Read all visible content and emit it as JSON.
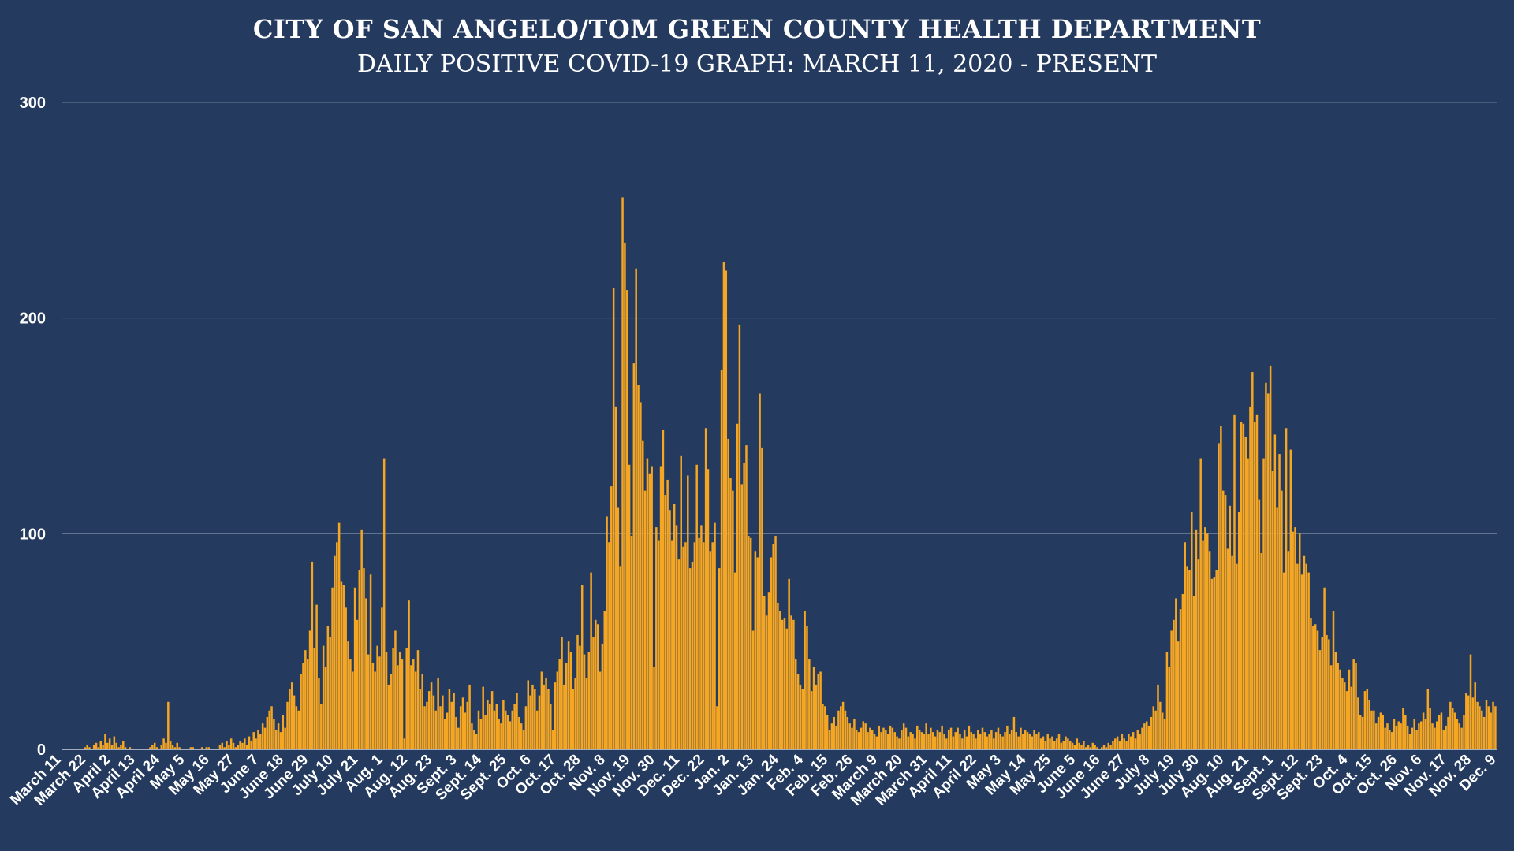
{
  "chart_data": {
    "type": "bar",
    "title": "CITY OF SAN ANGELO/TOM GREEN COUNTY HEALTH DEPARTMENT",
    "subtitle": "DAILY POSITIVE COVID-19 GRAPH: MARCH 11, 2020 - PRESENT",
    "xlabel": "",
    "ylabel": "",
    "ylim": [
      0,
      300
    ],
    "yticks": [
      0,
      100,
      200,
      300
    ],
    "grid": true,
    "legend": "none",
    "bar_color": "#f5a623",
    "categories": [
      "March 11",
      "March 22",
      "April 2",
      "April 13",
      "April 24",
      "May 5",
      "May 16",
      "May 27",
      "June 7",
      "June 18",
      "June 29",
      "July 10",
      "July 21",
      "Aug. 1",
      "Aug. 12",
      "Aug. 23",
      "Sept. 3",
      "Sept. 14",
      "Sept. 25",
      "Oct. 6",
      "Oct. 17",
      "Oct. 28",
      "Nov. 8",
      "Nov. 19",
      "Nov. 30",
      "Dec. 11",
      "Dec. 22",
      "Jan. 2",
      "Jan. 13",
      "Jan. 24",
      "Feb. 4",
      "Feb. 15",
      "Feb. 26",
      "March 9",
      "March 20",
      "March 31",
      "April 11",
      "April 22",
      "May 3",
      "May 14",
      "May 25",
      "June 5",
      "June 16",
      "June 27",
      "July 8",
      "July 19",
      "July 30",
      "Aug. 10",
      "Aug. 21",
      "Sept. 1",
      "Sept. 12",
      "Sept. 23",
      "Oct. 4",
      "Oct. 15",
      "Oct. 26",
      "Nov. 6",
      "Nov. 17",
      "Nov. 28",
      "Dec. 9"
    ],
    "series": [
      {
        "values": [
          [
            0,
            0,
            0,
            0,
            0,
            0,
            0,
            0,
            0,
            0,
            1
          ],
          [
            2,
            1,
            0,
            2,
            3,
            1,
            4,
            2,
            7,
            3,
            5
          ],
          [
            2,
            6,
            3,
            1,
            2,
            4,
            1,
            0,
            1,
            0,
            0
          ],
          [
            0,
            0,
            0,
            0,
            0,
            0,
            1,
            2,
            3,
            1,
            0
          ],
          [
            2,
            5,
            3,
            22,
            4,
            2,
            1,
            3,
            1,
            0,
            0
          ],
          [
            0,
            0,
            1,
            1,
            0,
            0,
            0,
            1,
            0,
            1,
            1
          ],
          [
            0,
            0,
            0,
            0,
            2,
            3,
            1,
            4,
            2,
            5,
            3
          ],
          [
            1,
            2,
            4,
            3,
            5,
            2,
            6,
            4,
            8,
            5,
            9
          ],
          [
            7,
            12,
            10,
            15,
            18,
            20,
            14,
            9,
            12,
            8,
            16
          ],
          [
            10,
            22,
            28,
            31,
            25,
            20,
            18,
            35,
            40,
            46,
            42
          ],
          [
            55,
            87,
            47,
            67,
            33,
            21,
            48,
            38,
            57,
            52,
            75
          ],
          [
            90,
            96,
            105,
            78,
            76,
            66,
            50,
            42,
            36,
            75,
            60
          ],
          [
            83,
            102,
            84,
            70,
            44,
            81,
            40,
            36,
            48,
            43,
            66
          ],
          [
            135,
            45,
            30,
            35,
            47,
            55,
            39,
            45,
            42,
            5,
            47
          ],
          [
            69,
            39,
            42,
            36,
            46,
            28,
            35,
            20,
            22,
            27,
            31
          ],
          [
            25,
            18,
            33,
            20,
            25,
            14,
            17,
            28,
            22,
            26,
            15
          ],
          [
            10,
            20,
            24,
            17,
            22,
            30,
            12,
            9,
            7,
            18,
            14
          ],
          [
            29,
            16,
            23,
            21,
            27,
            18,
            21,
            14,
            12,
            23,
            18
          ],
          [
            16,
            13,
            18,
            21,
            26,
            15,
            12,
            9,
            20,
            32,
            25
          ],
          [
            30,
            28,
            18,
            25,
            36,
            30,
            33,
            28,
            21,
            9,
            31
          ],
          [
            36,
            42,
            52,
            30,
            40,
            50,
            45,
            28,
            33,
            53,
            48
          ],
          [
            76,
            44,
            33,
            45,
            82,
            52,
            60,
            58,
            36,
            49,
            64
          ],
          [
            108,
            96,
            122,
            214,
            159,
            112,
            85,
            256,
            235,
            213,
            132
          ],
          [
            99,
            179,
            223,
            169,
            161,
            143,
            120,
            135,
            128,
            131,
            38
          ],
          [
            103,
            97,
            131,
            148,
            118,
            125,
            111,
            97,
            114,
            104,
            88
          ],
          [
            136,
            94,
            96,
            127,
            84,
            87,
            96,
            132,
            98,
            104,
            96
          ],
          [
            149,
            130,
            92,
            96,
            105,
            20,
            84,
            176,
            226,
            222,
            144
          ],
          [
            126,
            120,
            82,
            151,
            197,
            123,
            133,
            141,
            99,
            98,
            55
          ],
          [
            92,
            89,
            165,
            140,
            71,
            62,
            73,
            89,
            95,
            99,
            68
          ],
          [
            64,
            60,
            61,
            56,
            79,
            62,
            60,
            42,
            35,
            30,
            28
          ],
          [
            64,
            57,
            42,
            27,
            38,
            30,
            35,
            36,
            21,
            20,
            16
          ],
          [
            9,
            12,
            15,
            11,
            18,
            20,
            22,
            18,
            15,
            12,
            10
          ],
          [
            14,
            9,
            8,
            10,
            13,
            12,
            8,
            10,
            9,
            7,
            6
          ],
          [
            11,
            8,
            10,
            9,
            7,
            11,
            10,
            8,
            6,
            5,
            9
          ],
          [
            12,
            10,
            6,
            8,
            7,
            5,
            11,
            9,
            8,
            7,
            12
          ],
          [
            7,
            10,
            8,
            6,
            9,
            8,
            11,
            7,
            5,
            9,
            10
          ],
          [
            6,
            8,
            10,
            7,
            5,
            9,
            6,
            11,
            8,
            7,
            5
          ],
          [
            9,
            7,
            10,
            8,
            6,
            7,
            9,
            5,
            8,
            10,
            7
          ],
          [
            6,
            8,
            11,
            7,
            9,
            15,
            8,
            6,
            10,
            7,
            9
          ],
          [
            8,
            7,
            6,
            9,
            7,
            8,
            5,
            6,
            4,
            7,
            5
          ],
          [
            6,
            4,
            5,
            7,
            3,
            4,
            6,
            5,
            4,
            3,
            2
          ],
          [
            5,
            3,
            2,
            4,
            1,
            2,
            1,
            3,
            2,
            1,
            0
          ],
          [
            1,
            2,
            1,
            3,
            2,
            4,
            5,
            6,
            4,
            7,
            5
          ],
          [
            4,
            7,
            6,
            8,
            5,
            9,
            7,
            10,
            12,
            13,
            11
          ],
          [
            15,
            20,
            18,
            30,
            22,
            17,
            14,
            45,
            38,
            55,
            60
          ],
          [
            70,
            50,
            65,
            72,
            96,
            85,
            83,
            110,
            71,
            102,
            88
          ],
          [
            135,
            97,
            103,
            100,
            92,
            79,
            80,
            83,
            142,
            150,
            120
          ],
          [
            118,
            93,
            113,
            90,
            155,
            86,
            110,
            152,
            151,
            145,
            135
          ],
          [
            159,
            175,
            152,
            155,
            116,
            91,
            135,
            170,
            165,
            178,
            129
          ],
          [
            146,
            112,
            137,
            120,
            82,
            149,
            92,
            139,
            101,
            103,
            86
          ],
          [
            100,
            81,
            90,
            86,
            82,
            61,
            57,
            58,
            55,
            46,
            52
          ],
          [
            75,
            53,
            51,
            39,
            64,
            45,
            40,
            37,
            33,
            31,
            27
          ],
          [
            37,
            29,
            42,
            40,
            24,
            16,
            15,
            27,
            28,
            23,
            18
          ],
          [
            18,
            12,
            15,
            17,
            16,
            10,
            12,
            9,
            8,
            14,
            11
          ],
          [
            13,
            12,
            19,
            16,
            11,
            7,
            10,
            14,
            9,
            12,
            13
          ],
          [
            17,
            14,
            28,
            19,
            12,
            10,
            13,
            16,
            17,
            9,
            11
          ],
          [
            15,
            22,
            19,
            17,
            14,
            12,
            10,
            16,
            26,
            25,
            44
          ],
          [
            24,
            31,
            22,
            20,
            18,
            15,
            23,
            20,
            17,
            22,
            20
          ]
        ],
        "values_note_removed": true
      }
    ]
  }
}
